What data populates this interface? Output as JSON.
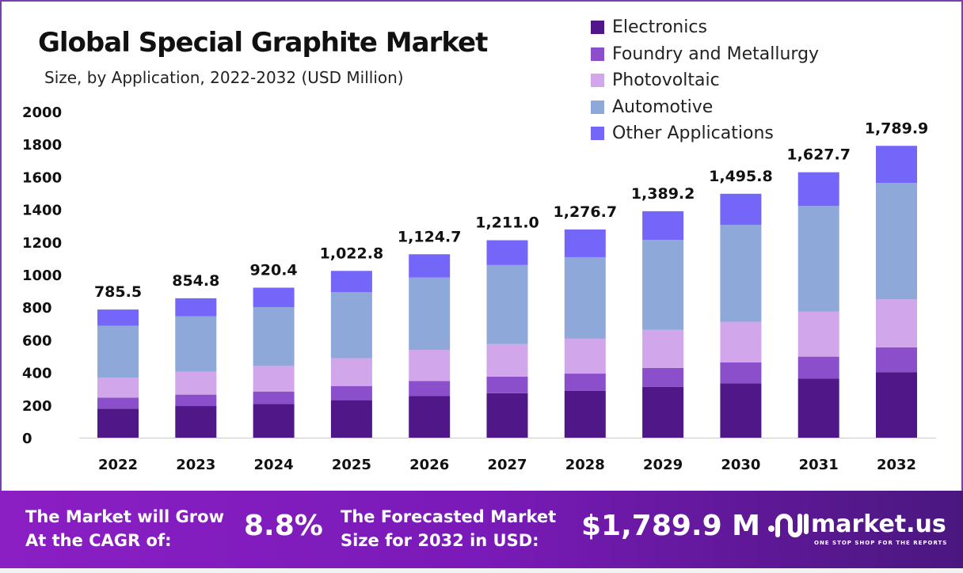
{
  "chart_data": {
    "type": "bar",
    "stacked": true,
    "title": "Global Special Graphite Market",
    "subtitle": "Size, by Application, 2022-2032 (USD Million)",
    "xlabel": "",
    "ylabel": "",
    "ylim": [
      0,
      2000
    ],
    "yticks": [
      0,
      200,
      400,
      600,
      800,
      1000,
      1200,
      1400,
      1600,
      1800,
      2000
    ],
    "grid": false,
    "legend_position": "top-right",
    "categories": [
      "2022",
      "2023",
      "2024",
      "2025",
      "2026",
      "2027",
      "2028",
      "2029",
      "2030",
      "2031",
      "2032"
    ],
    "totals": [
      "785.5",
      "854.8",
      "920.4",
      "1,022.8",
      "1,124.7",
      "1,211.0",
      "1,276.7",
      "1,389.2",
      "1,495.8",
      "1,627.7",
      "1,789.9"
    ],
    "series": [
      {
        "name": "Electronics",
        "color": "#4f1787",
        "values": [
          178,
          194,
          207,
          230,
          255,
          273,
          288,
          311,
          333,
          362,
          402
        ]
      },
      {
        "name": "Foundry and Metallurgy",
        "color": "#8c4fcc",
        "values": [
          68,
          70,
          76,
          87,
          93,
          102,
          105,
          117,
          129,
          135,
          152
        ]
      },
      {
        "name": "Photovoltaic",
        "color": "#d2a6ea",
        "values": [
          123,
          140,
          157,
          171,
          191,
          199,
          214,
          233,
          249,
          277,
          295
        ]
      },
      {
        "name": "Automotive",
        "color": "#8fa8da",
        "values": [
          317,
          340,
          361,
          405,
          443,
          485,
          500,
          552,
          594,
          647,
          714
        ]
      },
      {
        "name": "Other Applications",
        "color": "#7566fa",
        "values": [
          100,
          111,
          119,
          130,
          143,
          152,
          170,
          176,
          191,
          207,
          227
        ]
      }
    ]
  },
  "footer": {
    "cagr_label_1": "The Market will Grow",
    "cagr_label_2": "At the CAGR of:",
    "cagr_value": "8.8%",
    "forecast_label_1": "The Forecasted Market",
    "forecast_label_2": "Size for 2032 in USD:",
    "forecast_value": "$1,789.9 M",
    "brand": "market.us",
    "tagline": "ONE STOP SHOP FOR THE REPORTS"
  }
}
